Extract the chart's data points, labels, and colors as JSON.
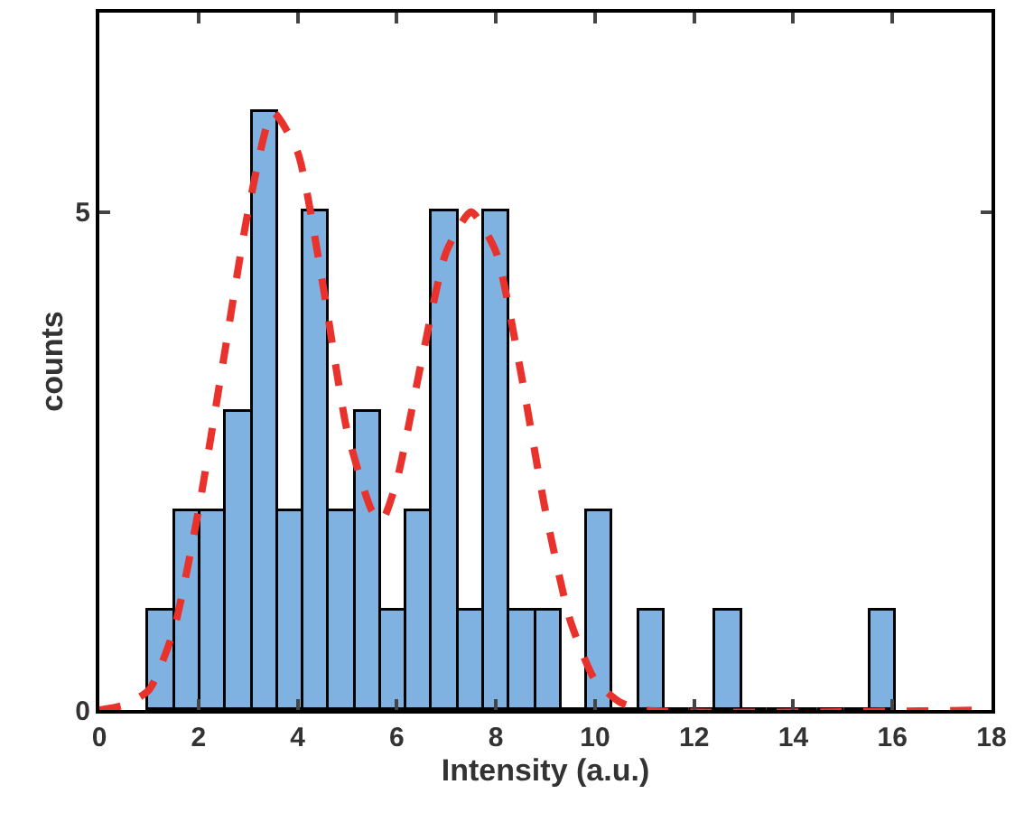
{
  "chart_data": {
    "type": "histogram",
    "xlabel": "Intensity (a.u.)",
    "ylabel": "counts",
    "bins": [
      1.0,
      1.52,
      2.04,
      2.56,
      3.08,
      3.6,
      4.12,
      4.64,
      5.16,
      5.68,
      6.2,
      6.72,
      7.24,
      7.76,
      8.28,
      8.8,
      9.32,
      9.84,
      10.36,
      10.88,
      11.4,
      11.92,
      12.44,
      12.96,
      13.48,
      14.0,
      14.52,
      15.04,
      15.56,
      16.08
    ],
    "values": [
      1,
      2,
      2,
      3,
      6,
      2,
      5,
      2,
      3,
      1,
      2,
      5,
      1,
      5,
      1,
      1,
      0,
      2,
      0,
      1,
      0,
      0,
      1,
      0,
      0,
      0,
      0,
      0,
      1
    ],
    "color": "#7fb2e0",
    "series": [
      {
        "type": "line",
        "color": "#e8322b",
        "line_style": "dashed",
        "x": [
          0,
          0.5,
          1,
          1.5,
          2,
          2.5,
          3,
          3.5,
          4,
          4.5,
          5,
          5.5,
          5.7,
          6,
          6.5,
          7,
          7.5,
          8,
          8.5,
          9,
          9.5,
          10,
          10.5,
          11,
          18
        ],
        "values": [
          0,
          0.05,
          0.2,
          0.8,
          2,
          3.5,
          5,
          6,
          5.6,
          4.3,
          2.8,
          2,
          1.9,
          2.3,
          3.5,
          4.6,
          5,
          4.6,
          3.4,
          2,
          0.9,
          0.3,
          0.08,
          0,
          0
        ]
      }
    ],
    "xlim": [
      0,
      18
    ],
    "xticks": [
      0,
      2,
      4,
      6,
      8,
      10,
      12,
      14,
      16,
      18
    ],
    "ylim": [
      0,
      7
    ],
    "yticks": [
      0,
      5
    ]
  }
}
